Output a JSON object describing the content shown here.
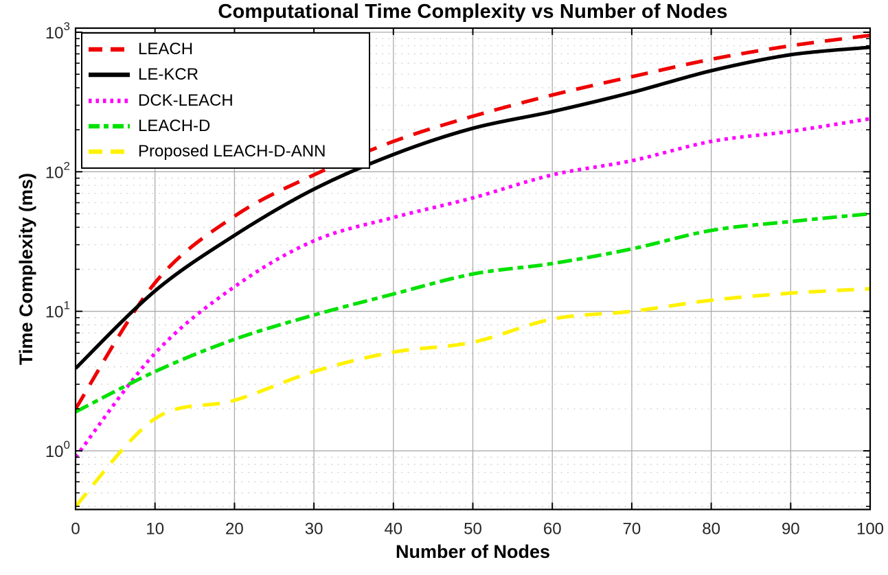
{
  "figure": {
    "title": "Computational Time Complexity vs Number of Nodes",
    "xlabel": "Number of Nodes",
    "ylabel": "Time Complexity (ms)"
  },
  "chart_data": {
    "type": "line",
    "title": "Computational Time Complexity vs Number of Nodes",
    "xlabel": "Number of Nodes",
    "ylabel": "Time Complexity (ms)",
    "x": [
      0,
      10,
      20,
      30,
      40,
      50,
      60,
      70,
      80,
      90,
      100
    ],
    "series": [
      {
        "name": "LEACH",
        "color": "#ef0000",
        "line_style": "dashed",
        "values": [
          2,
          16,
          48,
          95,
          165,
          250,
          355,
          480,
          640,
          800,
          950
        ]
      },
      {
        "name": "LE-KCR",
        "color": "#000000",
        "line_style": "solid",
        "values": [
          3.9,
          14,
          35,
          75,
          133,
          205,
          270,
          370,
          530,
          690,
          780
        ]
      },
      {
        "name": "DCK-LEACH",
        "color": "#ff00ff",
        "line_style": "dotted",
        "values": [
          0.9,
          5,
          15,
          32,
          47,
          65,
          95,
          120,
          165,
          195,
          240
        ]
      },
      {
        "name": "LEACH-D",
        "color": "#00e100",
        "line_style": "dashdot",
        "values": [
          1.9,
          3.7,
          6.3,
          9.4,
          13.3,
          18.5,
          22,
          28,
          38,
          44,
          50
        ]
      },
      {
        "name": "Proposed LEACH-D-ANN",
        "color": "#fff200",
        "line_style": "dashed",
        "values": [
          0.4,
          1.7,
          2.3,
          3.7,
          5.1,
          6.0,
          8.8,
          10,
          12,
          13.5,
          14.5
        ]
      }
    ],
    "x_axis": {
      "scale": "linear",
      "lim": [
        0,
        100
      ],
      "ticks": [
        0,
        10,
        20,
        30,
        40,
        50,
        60,
        70,
        80,
        90,
        100
      ]
    },
    "y_axis": {
      "scale": "log",
      "lim": [
        0.38,
        1070
      ],
      "tick_base": "10",
      "ticks": [
        {
          "value": 1,
          "exp": "0"
        },
        {
          "value": 10,
          "exp": "1"
        },
        {
          "value": 100,
          "exp": "2"
        },
        {
          "value": 1000,
          "exp": "3"
        }
      ]
    },
    "grid": {
      "major": true,
      "minor": true
    },
    "legend": {
      "position": "top-left",
      "entries": [
        "LEACH",
        "LE-KCR",
        "DCK-LEACH",
        "LEACH-D",
        "Proposed LEACH-D-ANN"
      ]
    }
  },
  "colors": {
    "background": "#ffffff",
    "frame": "#000000",
    "tick_label": "#262626",
    "grid_major": "#ababab",
    "grid_minor": "#c9c9c9"
  }
}
